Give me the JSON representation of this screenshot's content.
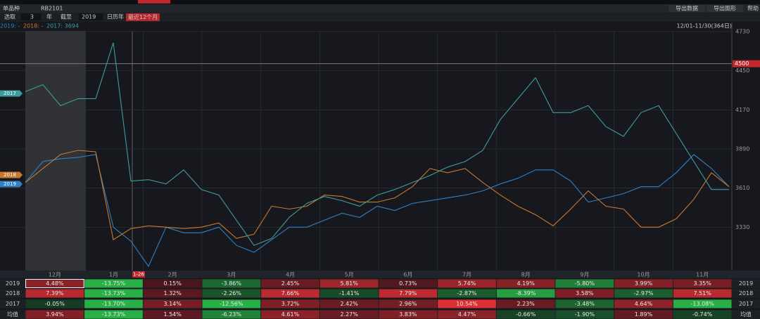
{
  "toolbar": {
    "product_label": "单品种",
    "code": "RB2101",
    "buttons": [
      "导出数据",
      "导出图形",
      "帮助"
    ],
    "select_label": "选取",
    "years": "3",
    "year_unit": "年",
    "until_label": "截至",
    "until_year": "2019",
    "options": [
      "日历年",
      "最近12个月"
    ]
  },
  "chart_data": {
    "type": "line",
    "range_label": "12/01-11/30(364日)",
    "ylim": [
      3020,
      4795
    ],
    "yticks": [
      3330,
      3610,
      3890,
      4170,
      4450,
      4730
    ],
    "crosshair": {
      "value": 4500,
      "date": "1-26"
    },
    "x_labels": [
      "12月",
      "1月",
      "2月",
      "3月",
      "4月",
      "5月",
      "6月",
      "7月",
      "8月",
      "9月",
      "10月",
      "11月"
    ],
    "series": [
      {
        "name": "2019",
        "legend_label": "2019: -",
        "color": "#2f80c4",
        "values": [
          3650,
          3800,
          3820,
          3830,
          3850,
          3330,
          3230,
          3050,
          3330,
          3290,
          3290,
          3330,
          3200,
          3150,
          3240,
          3330,
          3330,
          3380,
          3430,
          3400,
          3480,
          3450,
          3500,
          3520,
          3540,
          3560,
          3590,
          3640,
          3680,
          3740,
          3740,
          3660,
          3510,
          3540,
          3570,
          3620,
          3620,
          3720,
          3850,
          3750,
          3620
        ]
      },
      {
        "name": "2018",
        "legend_label": "2018: -",
        "color": "#c8782e",
        "values": [
          3650,
          3750,
          3850,
          3880,
          3870,
          3240,
          3320,
          3340,
          3330,
          3320,
          3330,
          3360,
          3250,
          3280,
          3480,
          3460,
          3480,
          3560,
          3550,
          3510,
          3510,
          3540,
          3620,
          3750,
          3720,
          3750,
          3650,
          3560,
          3480,
          3420,
          3340,
          3460,
          3590,
          3480,
          3460,
          3330,
          3330,
          3390,
          3530,
          3720,
          3620
        ]
      },
      {
        "name": "2017",
        "legend_label": "2017: 3694",
        "color": "#3f9c9c",
        "values": [
          4300,
          4350,
          4200,
          4250,
          4250,
          4650,
          3660,
          3670,
          3640,
          3740,
          3600,
          3560,
          3380,
          3200,
          3250,
          3400,
          3500,
          3550,
          3520,
          3480,
          3560,
          3600,
          3650,
          3700,
          3760,
          3800,
          3880,
          4100,
          4250,
          4400,
          4150,
          4150,
          4200,
          4050,
          3980,
          4150,
          4200,
          4000,
          3800,
          3600,
          3600
        ]
      }
    ]
  },
  "table": {
    "rows": [
      {
        "name": "2019",
        "values": [
          4.48,
          -13.75,
          0.15,
          -3.86,
          2.45,
          5.81,
          0.73,
          5.74,
          4.19,
          -5.8,
          3.99,
          3.35
        ],
        "value_labels": [
          "4.48%",
          "-13.75%",
          "0.15%",
          "-3.86%",
          "2.45%",
          "5.81%",
          "0.73%",
          "5.74%",
          "4.19%",
          "-5.80%",
          "3.99%",
          "3.35%"
        ]
      },
      {
        "name": "2018",
        "values": [
          7.39,
          -13.73,
          1.32,
          -2.26,
          7.66,
          -1.41,
          7.79,
          -2.87,
          -8.39,
          3.58,
          -2.97,
          7.51
        ],
        "value_labels": [
          "7.39%",
          "-13.73%",
          "1.32%",
          "-2.26%",
          "7.66%",
          "-1.41%",
          "7.79%",
          "-2.87%",
          "-8.39%",
          "3.58%",
          "-2.97%",
          "7.51%"
        ]
      },
      {
        "name": "2017",
        "values": [
          -0.05,
          -13.7,
          3.14,
          -12.56,
          3.72,
          2.42,
          2.96,
          10.54,
          2.23,
          -3.48,
          4.64,
          -13.08
        ],
        "value_labels": [
          "-0.05%",
          "-13.70%",
          "3.14%",
          "-12.56%",
          "3.72%",
          "2.42%",
          "2.96%",
          "10.54%",
          "2.23%",
          "-3.48%",
          "4.64%",
          "-13.08%"
        ]
      },
      {
        "name": "均值",
        "values": [
          3.94,
          -13.73,
          1.54,
          -6.23,
          4.61,
          2.27,
          3.83,
          4.47,
          -0.66,
          -1.9,
          1.89,
          -0.74
        ],
        "value_labels": [
          "3.94%",
          "-13.73%",
          "1.54%",
          "-6.23%",
          "4.61%",
          "2.27%",
          "3.83%",
          "4.47%",
          "-0.66%",
          "-1.90%",
          "1.89%",
          "-0.74%"
        ]
      }
    ]
  }
}
